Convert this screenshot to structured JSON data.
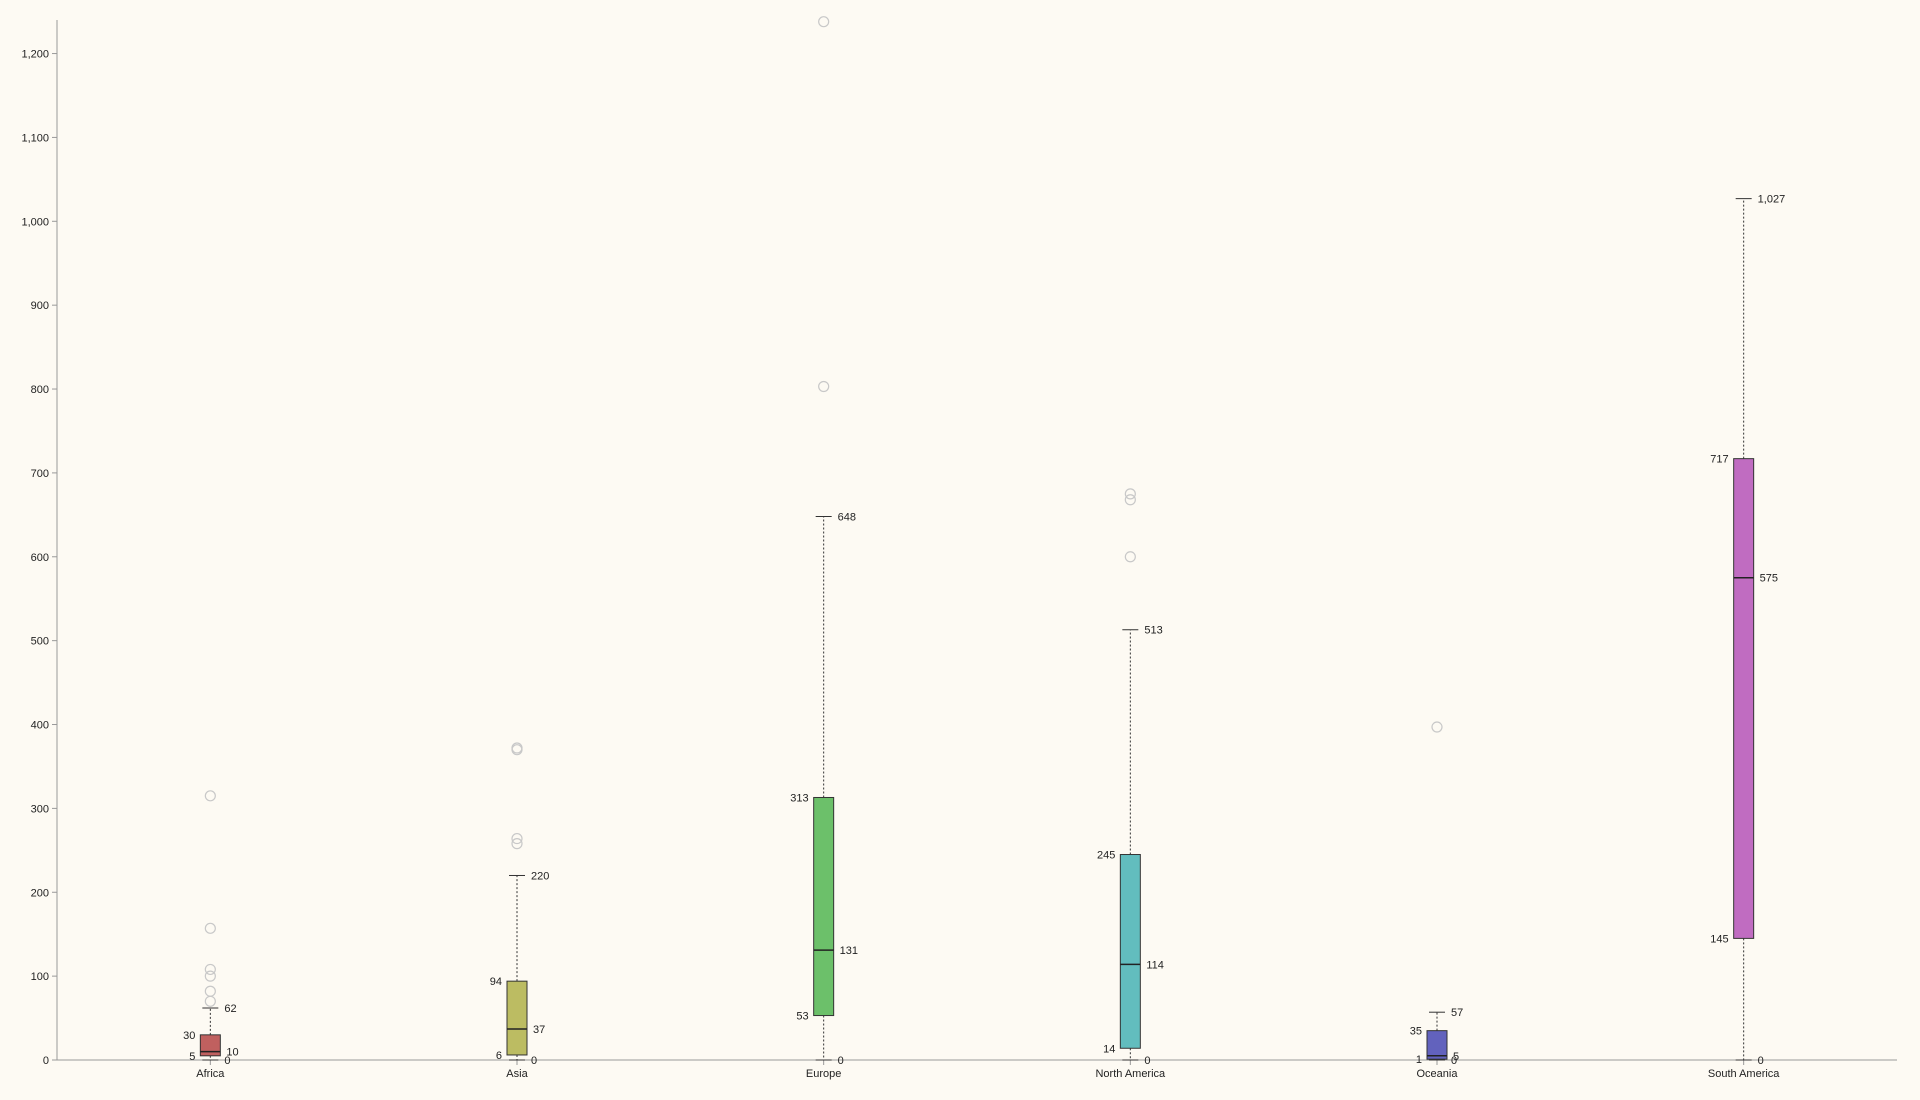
{
  "chart_data": {
    "type": "box",
    "title": "",
    "xlabel": "",
    "ylabel": "",
    "ylim": [
      0,
      1240
    ],
    "yticks": [
      0,
      100,
      200,
      300,
      400,
      500,
      600,
      700,
      800,
      900,
      1000,
      1100,
      1200
    ],
    "ytick_labels": [
      "0",
      "100",
      "200",
      "300",
      "400",
      "500",
      "600",
      "700",
      "800",
      "900",
      "1,000",
      "1,100",
      "1,200"
    ],
    "grid": false,
    "categories": [
      "Africa",
      "Asia",
      "Europe",
      "North America",
      "Oceania",
      "South America"
    ],
    "boxes": [
      {
        "name": "Africa",
        "color": "#c0605f",
        "min": 0,
        "q1": 5,
        "median": 10,
        "q3": 30,
        "max": 62,
        "labels": {
          "min": "0",
          "q1": "5",
          "median": "10",
          "q3": "30",
          "max": "62"
        },
        "outliers": [
          70,
          82,
          100,
          108,
          157,
          315
        ]
      },
      {
        "name": "Asia",
        "color": "#bcbc62",
        "min": 0,
        "q1": 6,
        "median": 37,
        "q3": 94,
        "max": 220,
        "labels": {
          "min": "0",
          "q1": "6",
          "median": "37",
          "q3": "94",
          "max": "220"
        },
        "outliers": [
          258,
          264,
          370,
          372
        ]
      },
      {
        "name": "Europe",
        "color": "#6cc06a",
        "min": 0,
        "q1": 53,
        "median": 131,
        "q3": 313,
        "max": 648,
        "labels": {
          "min": "0",
          "q1": "53",
          "median": "131",
          "q3": "313",
          "max": "648"
        },
        "outliers": [
          803,
          1238
        ]
      },
      {
        "name": "North America",
        "color": "#62bdbe",
        "min": 0,
        "q1": 14,
        "median": 114,
        "q3": 245,
        "max": 513,
        "labels": {
          "min": "0",
          "q1": "14",
          "median": "114",
          "q3": "245",
          "max": "513"
        },
        "outliers": [
          600,
          668,
          675
        ]
      },
      {
        "name": "Oceania",
        "color": "#6262bd",
        "min": 0,
        "q1": 1,
        "median": 5,
        "q3": 35,
        "max": 57,
        "labels": {
          "min": "0",
          "q1": "1",
          "median": "5",
          "q3": "35",
          "max": "57"
        },
        "outliers": [
          397
        ]
      },
      {
        "name": "South America",
        "color": "#c06cc1",
        "min": 0,
        "q1": 145,
        "median": 575,
        "q3": 717,
        "max": 1027,
        "labels": {
          "min": "0",
          "q1": "145",
          "median": "575",
          "q3": "717",
          "max": "1,027"
        },
        "outliers": []
      }
    ]
  }
}
